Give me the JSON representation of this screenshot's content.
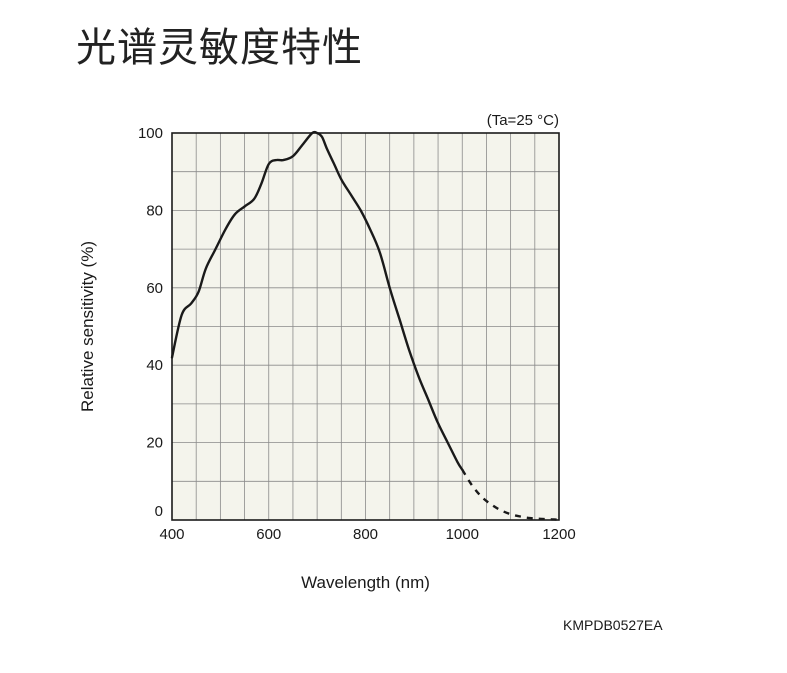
{
  "page": {
    "title": "光谱灵敏度特性",
    "doc_code": "KMPDB0527EA"
  },
  "chart_data": {
    "type": "line",
    "title": "光谱灵敏度特性",
    "annotation": "(Ta=25 °C)",
    "xlabel": "Wavelength (nm)",
    "ylabel": "Relative sensitivity (%)",
    "xlim": [
      400,
      1200
    ],
    "ylim": [
      0,
      100
    ],
    "xticks": [
      400,
      600,
      800,
      1000,
      1200
    ],
    "yticks": [
      0,
      20,
      40,
      60,
      80,
      100
    ],
    "grid": true,
    "plot_background": "#f4f4ec",
    "line_color": "#1a1a1a",
    "series": [
      {
        "style": "solid",
        "x": [
          400,
          420,
          440,
          455,
          470,
          490,
          510,
          530,
          550,
          570,
          585,
          600,
          615,
          630,
          650,
          670,
          690,
          700,
          710,
          720,
          735,
          750,
          770,
          790,
          810,
          830,
          850,
          870,
          890,
          910,
          930,
          950,
          970,
          990,
          1000
        ],
        "y": [
          42,
          53,
          56,
          59,
          65,
          70,
          75,
          79,
          81,
          83,
          87,
          92,
          93,
          93,
          94,
          97,
          100,
          100,
          99,
          96,
          92,
          88,
          84,
          80,
          75,
          69,
          60,
          52,
          44,
          37,
          31,
          25,
          20,
          15,
          13
        ]
      },
      {
        "style": "dashed",
        "x": [
          1000,
          1020,
          1040,
          1060,
          1080,
          1100,
          1120,
          1140,
          1160,
          1180,
          1195
        ],
        "y": [
          13,
          9,
          6,
          4,
          2.5,
          1.5,
          0.9,
          0.5,
          0.3,
          0.2,
          0.1
        ]
      }
    ]
  }
}
